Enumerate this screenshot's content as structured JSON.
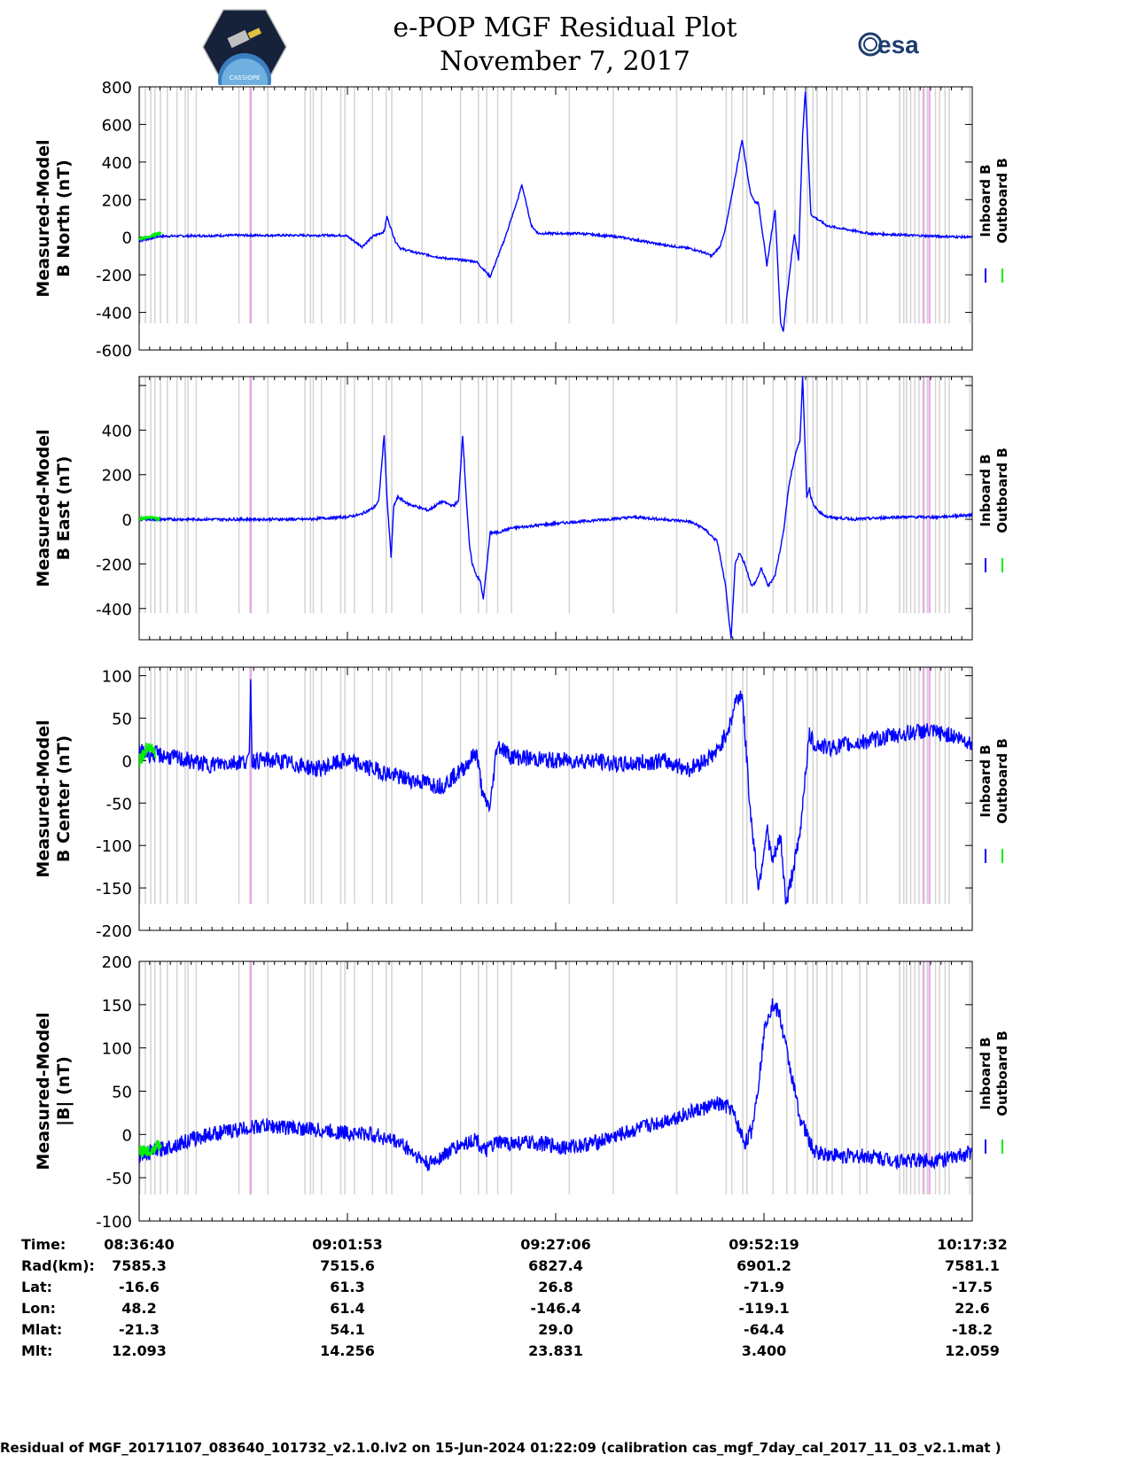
{
  "header": {
    "title_line1": "e-POP MGF Residual Plot",
    "title_line2": "November 7, 2017",
    "logo_left_text": "CASSIOPE",
    "logo_right_text": "esa"
  },
  "colors": {
    "inboard": "#0000ff",
    "outboard": "#00ee00",
    "gap": "#d3d3d3",
    "flag": "#e8a8e8"
  },
  "chart_data": [
    {
      "type": "line",
      "ylabel": [
        "Measured-Model",
        "B North (nT)"
      ],
      "ylim": [
        -600,
        800
      ],
      "yticks": [
        800,
        600,
        400,
        200,
        0,
        -200,
        -400,
        -600
      ],
      "ytick_labels": [
        "800",
        "600",
        "400",
        "200",
        "0",
        "-200",
        "-400",
        "-600"
      ],
      "x_seconds_range": [
        0,
        6052
      ],
      "legend": [
        "Inboard B",
        "Outboard B"
      ],
      "series": [
        {
          "name": "Inboard B",
          "x": [
            0,
            150,
            700,
            1200,
            1500,
            1620,
            1700,
            1780,
            1800,
            1860,
            1900,
            2000,
            2200,
            2450,
            2550,
            2650,
            2750,
            2780,
            2850,
            2900,
            3000,
            3200,
            3500,
            3800,
            4000,
            4100,
            4160,
            4220,
            4260,
            4300,
            4380,
            4440,
            4470,
            4500,
            4560,
            4620,
            4660,
            4680,
            4700,
            4740,
            4760,
            4790,
            4820,
            4840,
            4880,
            5000,
            5300,
            5600,
            5800,
            6052
          ],
          "y": [
            -20,
            5,
            10,
            10,
            10,
            -50,
            5,
            30,
            110,
            -20,
            -60,
            -80,
            -110,
            -130,
            -210,
            -20,
            200,
            280,
            60,
            20,
            20,
            20,
            0,
            -40,
            -60,
            -80,
            -100,
            -50,
            50,
            200,
            520,
            240,
            190,
            180,
            -150,
            150,
            -460,
            -500,
            -350,
            -100,
            20,
            -120,
            550,
            780,
            120,
            60,
            20,
            10,
            5,
            0
          ]
        },
        {
          "name": "Outboard B",
          "x": [
            0,
            60,
            120,
            160
          ],
          "y": [
            -10,
            0,
            15,
            20
          ]
        }
      ]
    },
    {
      "type": "line",
      "ylabel": [
        "Measured-Model",
        "B East (nT)"
      ],
      "ylim": [
        -540,
        640
      ],
      "yticks": [
        600,
        400,
        200,
        0,
        -200,
        -400
      ],
      "ytick_labels": [
        "",
        "400",
        "200",
        "0",
        "-200",
        "-400"
      ],
      "x_seconds_range": [
        0,
        6052
      ],
      "legend": [
        "Inboard B",
        "Outboard B"
      ],
      "series": [
        {
          "name": "Inboard B",
          "x": [
            0,
            400,
            800,
            1200,
            1500,
            1600,
            1700,
            1740,
            1780,
            1800,
            1830,
            1850,
            1880,
            1950,
            2100,
            2200,
            2280,
            2320,
            2350,
            2380,
            2400,
            2420,
            2450,
            2480,
            2500,
            2550,
            2600,
            2700,
            3000,
            3600,
            4000,
            4100,
            4200,
            4260,
            4300,
            4330,
            4360,
            4400,
            4450,
            4480,
            4520,
            4570,
            4620,
            4680,
            4720,
            4770,
            4800,
            4820,
            4850,
            4870,
            4880,
            4900,
            4950,
            5000,
            5200,
            5500,
            5800,
            6052
          ],
          "y": [
            0,
            0,
            0,
            0,
            10,
            20,
            50,
            80,
            380,
            100,
            -170,
            60,
            100,
            70,
            40,
            80,
            60,
            80,
            380,
            60,
            -120,
            -200,
            -250,
            -280,
            -360,
            -60,
            -60,
            -40,
            -20,
            10,
            -10,
            -40,
            -100,
            -300,
            -540,
            -200,
            -150,
            -200,
            -300,
            -280,
            -220,
            -300,
            -250,
            -60,
            150,
            300,
            350,
            640,
            100,
            140,
            100,
            60,
            30,
            10,
            0,
            10,
            10,
            20
          ]
        },
        {
          "name": "Outboard B",
          "x": [
            0,
            60,
            120,
            150
          ],
          "y": [
            0,
            10,
            5,
            0
          ]
        }
      ]
    },
    {
      "type": "line",
      "ylabel": [
        "Measured-Model",
        "B Center (nT)"
      ],
      "ylim": [
        -200,
        110
      ],
      "yticks": [
        100,
        50,
        0,
        -50,
        -100,
        -150,
        -200
      ],
      "ytick_labels": [
        "100",
        "50",
        "0",
        "-50",
        "-100",
        "-150",
        "-200"
      ],
      "x_seconds_range": [
        0,
        6052
      ],
      "legend": [
        "Inboard B",
        "Outboard B"
      ],
      "series": [
        {
          "name": "Inboard B",
          "x": [
            0,
            200,
            500,
            800,
            810,
            820,
            1000,
            1300,
            1500,
            1700,
            1900,
            2200,
            2350,
            2450,
            2500,
            2550,
            2600,
            2700,
            3000,
            3300,
            3500,
            3800,
            4000,
            4200,
            4300,
            4330,
            4380,
            4440,
            4500,
            4560,
            4600,
            4660,
            4700,
            4760,
            4800,
            4830,
            4870,
            4900,
            5000,
            5200,
            5500,
            5700,
            5900,
            6052
          ],
          "y": [
            10,
            5,
            -5,
            0,
            100,
            0,
            0,
            -10,
            0,
            -10,
            -20,
            -30,
            -10,
            10,
            -45,
            -55,
            20,
            5,
            0,
            0,
            -5,
            0,
            -10,
            10,
            45,
            70,
            80,
            -60,
            -150,
            -80,
            -120,
            -90,
            -170,
            -120,
            -90,
            -30,
            30,
            20,
            15,
            20,
            30,
            35,
            30,
            20
          ]
        },
        {
          "name": "Outboard B",
          "x": [
            0,
            40,
            80,
            120
          ],
          "y": [
            0,
            10,
            20,
            5
          ]
        }
      ]
    },
    {
      "type": "line",
      "ylabel": [
        "Measured-Model",
        "|B| (nT)"
      ],
      "ylim": [
        -100,
        200
      ],
      "yticks": [
        200,
        150,
        100,
        50,
        0,
        -50,
        -100
      ],
      "ytick_labels": [
        "200",
        "150",
        "100",
        "50",
        "0",
        "-50",
        "-100"
      ],
      "x_seconds_range": [
        0,
        6052
      ],
      "legend": [
        "Inboard B",
        "Outboard B"
      ],
      "series": [
        {
          "name": "Inboard B",
          "x": [
            0,
            200,
            400,
            500,
            700,
            900,
            1100,
            1300,
            1500,
            1700,
            1900,
            2100,
            2200,
            2300,
            2450,
            2500,
            2600,
            2700,
            2900,
            3100,
            3300,
            3500,
            3700,
            3900,
            4100,
            4200,
            4300,
            4400,
            4450,
            4500,
            4550,
            4600,
            4650,
            4700,
            4800,
            4900,
            5100,
            5300,
            5500,
            5700,
            5900,
            6052
          ],
          "y": [
            -25,
            -15,
            -5,
            0,
            5,
            10,
            8,
            5,
            2,
            0,
            -10,
            -35,
            -25,
            -15,
            -5,
            -20,
            -10,
            -10,
            -10,
            -15,
            -10,
            0,
            10,
            20,
            30,
            35,
            30,
            -10,
            5,
            60,
            130,
            150,
            140,
            100,
            20,
            -20,
            -25,
            -25,
            -30,
            -30,
            -28,
            -20
          ]
        },
        {
          "name": "Outboard B",
          "x": [
            0,
            60,
            120,
            160
          ],
          "y": [
            -20,
            -18,
            -15,
            -12
          ]
        }
      ]
    }
  ],
  "gap_bands": [
    [
      0,
      8
    ],
    [
      40,
      46
    ],
    [
      80,
      86
    ],
    [
      110,
      114
    ],
    [
      150,
      158
    ],
    [
      200,
      210
    ],
    [
      270,
      276
    ],
    [
      330,
      336
    ],
    [
      350,
      354
    ],
    [
      410,
      416
    ],
    [
      720,
      726
    ],
    [
      800,
      806
    ],
    [
      930,
      936
    ],
    [
      1200,
      1208
    ],
    [
      1240,
      1246
    ],
    [
      1260,
      1264
    ],
    [
      1320,
      1326
    ],
    [
      1460,
      1466
    ],
    [
      1490,
      1494
    ],
    [
      1560,
      1568
    ],
    [
      1690,
      1696
    ],
    [
      1790,
      1800
    ],
    [
      1830,
      1840
    ],
    [
      2050,
      2056
    ],
    [
      2330,
      2338
    ],
    [
      2460,
      2464
    ],
    [
      2520,
      2528
    ],
    [
      2600,
      2606
    ],
    [
      2700,
      2708
    ],
    [
      3120,
      3126
    ],
    [
      3440,
      3446
    ],
    [
      3900,
      3904
    ],
    [
      4260,
      4268
    ],
    [
      4300,
      4306
    ],
    [
      4380,
      4386
    ],
    [
      4410,
      4420
    ],
    [
      4600,
      4608
    ],
    [
      4700,
      4706
    ],
    [
      4760,
      4766
    ],
    [
      4850,
      4856
    ],
    [
      4890,
      4896
    ],
    [
      4920,
      4926
    ],
    [
      4990,
      4996
    ],
    [
      5030,
      5036
    ],
    [
      5100,
      5106
    ],
    [
      5230,
      5236
    ],
    [
      5280,
      5286
    ],
    [
      5520,
      5528
    ],
    [
      5550,
      5556
    ],
    [
      5570,
      5576
    ],
    [
      5600,
      5606
    ],
    [
      5630,
      5636
    ],
    [
      5660,
      5668
    ],
    [
      5690,
      5696
    ],
    [
      5720,
      5726
    ],
    [
      5740,
      5746
    ],
    [
      5780,
      5786
    ],
    [
      5810,
      5816
    ],
    [
      5850,
      5856
    ],
    [
      5880,
      5886
    ],
    [
      6030,
      6036
    ]
  ],
  "flag_lines": [
    812,
    5700,
    5740
  ],
  "time_axis": {
    "tick_seconds": [
      0,
      1513,
      3026,
      4539,
      6052
    ],
    "rows": [
      {
        "label": "Time:",
        "values": [
          "08:36:40",
          "09:01:53",
          "09:27:06",
          "09:52:19",
          "10:17:32"
        ]
      },
      {
        "label": "Rad(km):",
        "values": [
          "7585.3",
          "7515.6",
          "6827.4",
          "6901.2",
          "7581.1"
        ]
      },
      {
        "label": "Lat:",
        "values": [
          "-16.6",
          "61.3",
          "26.8",
          "-71.9",
          "-17.5"
        ]
      },
      {
        "label": "Lon:",
        "values": [
          "48.2",
          "61.4",
          "-146.4",
          "-119.1",
          "22.6"
        ]
      },
      {
        "label": "Mlat:",
        "values": [
          "-21.3",
          "54.1",
          "29.0",
          "-64.4",
          "-18.2"
        ]
      },
      {
        "label": "Mlt:",
        "values": [
          "12.093",
          "14.256",
          "23.831",
          "3.400",
          "12.059"
        ]
      }
    ]
  },
  "footer": "Residual of MGF_20171107_083640_101732_v2.1.0.lv2 on 15-Jun-2024 01:22:09 (calibration cas_mgf_7day_cal_2017_11_03_v2.1.mat )"
}
